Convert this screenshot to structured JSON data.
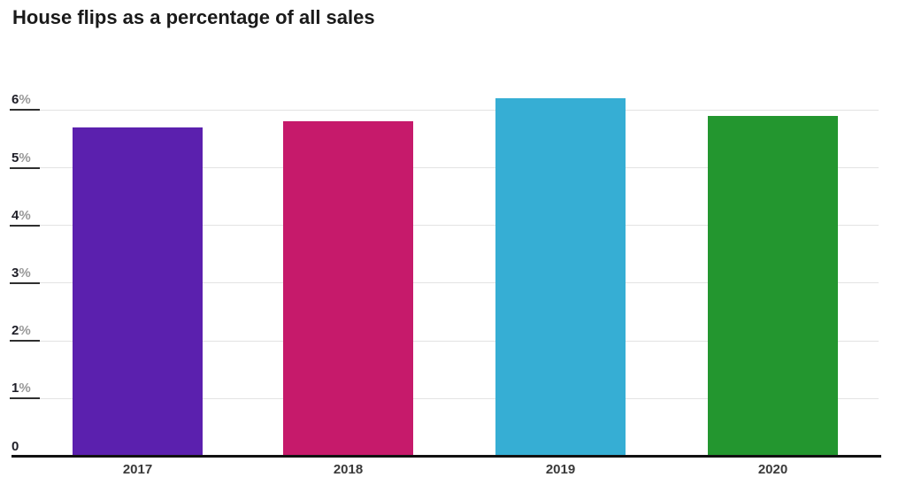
{
  "chart_data": {
    "type": "bar",
    "title": "House flips as a percentage of all sales",
    "categories": [
      "2017",
      "2018",
      "2019",
      "2020"
    ],
    "values": [
      5.7,
      5.8,
      6.2,
      5.9
    ],
    "value_unit": "%",
    "bar_colors": [
      "#5b20ae",
      "#c61a6b",
      "#36aed4",
      "#23962f"
    ],
    "yticks": [
      {
        "value": 0,
        "label": "0"
      },
      {
        "value": 1,
        "label": "1%"
      },
      {
        "value": 2,
        "label": "2%"
      },
      {
        "value": 3,
        "label": "3%"
      },
      {
        "value": 4,
        "label": "4%"
      },
      {
        "value": 5,
        "label": "5%"
      },
      {
        "value": 6,
        "label": "6%"
      }
    ],
    "ylim": [
      0,
      6.5
    ],
    "xlabel": "",
    "ylabel": "",
    "grid": "horizontal",
    "legend": "none"
  },
  "colors": {
    "background": "#ffffff",
    "gridline": "#e3e3e3",
    "tick_underline": "#2f2f2f",
    "baseline": "#111111",
    "title_text": "#1a1a1a",
    "ytick_number": "#1f1f28",
    "ytick_percent": "#999999",
    "xtick_text": "#3a3a3a"
  }
}
